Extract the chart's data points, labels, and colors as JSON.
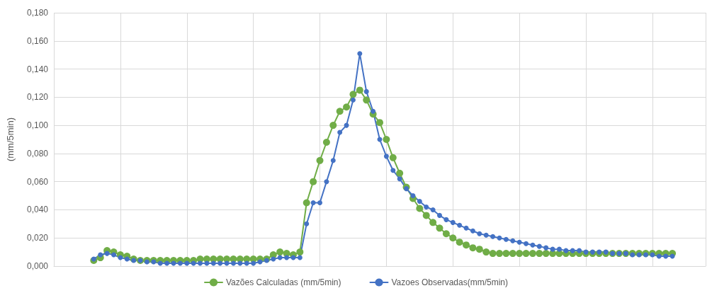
{
  "chart_data": {
    "type": "line",
    "ylabel": "(mm/5min)",
    "categories": [
      null,
      null,
      null,
      null,
      null,
      null,
      null,
      null,
      null,
      null,
      null,
      null,
      null,
      null,
      null,
      null,
      null,
      null,
      null,
      null,
      null,
      null,
      null,
      null,
      null,
      null,
      null,
      null,
      null,
      null,
      null,
      null,
      null,
      null,
      null,
      null,
      null,
      null,
      null,
      null,
      null,
      null,
      null,
      null,
      null,
      null,
      null,
      null,
      null,
      null,
      null,
      null,
      null,
      null,
      null,
      null,
      null,
      null,
      null,
      null,
      null,
      null,
      null,
      null,
      null,
      null,
      null,
      null,
      null,
      null,
      null,
      null,
      null,
      null,
      null,
      null,
      null,
      null,
      null,
      null,
      null,
      null,
      null,
      null,
      null,
      null,
      null,
      null,
      null,
      null,
      null,
      null,
      null,
      null,
      null,
      null,
      null,
      null,
      null
    ],
    "series": [
      {
        "name": "Vazões Calculadas (mm/5min)",
        "color": "#70ad47",
        "values": [
          null,
          null,
          null,
          null,
          null,
          null,
          0.004,
          0.006,
          0.011,
          0.01,
          0.008,
          0.007,
          0.005,
          0.004,
          0.004,
          0.004,
          0.004,
          0.004,
          0.004,
          0.004,
          0.004,
          0.004,
          0.005,
          0.005,
          0.005,
          0.005,
          0.005,
          0.005,
          0.005,
          0.005,
          0.005,
          0.005,
          0.005,
          0.008,
          0.01,
          0.009,
          0.008,
          0.01,
          0.045,
          0.06,
          0.075,
          0.088,
          0.1,
          0.11,
          0.113,
          0.122,
          0.125,
          0.118,
          0.108,
          0.102,
          0.09,
          0.077,
          0.066,
          0.056,
          0.048,
          0.041,
          0.036,
          0.031,
          0.027,
          0.023,
          0.02,
          0.017,
          0.015,
          0.013,
          0.012,
          0.01,
          0.009,
          0.009,
          0.009,
          0.009,
          0.009,
          0.009,
          0.009,
          0.009,
          0.009,
          0.009,
          0.009,
          0.009,
          0.009,
          0.009,
          0.009,
          0.009,
          0.009,
          0.009,
          0.009,
          0.009,
          0.009,
          0.009,
          0.009,
          0.009,
          0.009,
          0.009,
          0.009,
          0.009,
          null,
          null,
          null,
          null,
          null
        ]
      },
      {
        "name": "Vazoes Observadas(mm/5min)",
        "color": "#4472c4",
        "values": [
          null,
          null,
          null,
          null,
          null,
          null,
          0.005,
          0.008,
          0.009,
          0.008,
          0.006,
          0.005,
          0.004,
          0.004,
          0.003,
          0.003,
          0.002,
          0.002,
          0.002,
          0.002,
          0.002,
          0.002,
          0.002,
          0.002,
          0.002,
          0.002,
          0.002,
          0.002,
          0.002,
          0.002,
          0.002,
          0.003,
          0.004,
          0.005,
          0.006,
          0.006,
          0.006,
          0.006,
          0.03,
          0.045,
          0.045,
          0.06,
          0.075,
          0.095,
          0.1,
          0.118,
          0.151,
          0.124,
          0.11,
          0.09,
          0.078,
          0.068,
          0.062,
          0.055,
          0.05,
          0.046,
          0.042,
          0.04,
          0.036,
          0.033,
          0.031,
          0.029,
          0.027,
          0.025,
          0.023,
          0.022,
          0.021,
          0.02,
          0.019,
          0.018,
          0.017,
          0.016,
          0.015,
          0.014,
          0.013,
          0.012,
          0.012,
          0.011,
          0.011,
          0.011,
          0.01,
          0.01,
          0.01,
          0.01,
          0.009,
          0.009,
          0.009,
          0.008,
          0.008,
          0.008,
          0.008,
          0.007,
          0.007,
          0.007,
          null,
          null,
          null,
          null,
          null
        ]
      }
    ],
    "ylim": [
      0,
      0.18
    ],
    "yticks": [
      {
        "value": 0,
        "label": "0,000"
      },
      {
        "value": 0.02,
        "label": "0,020"
      },
      {
        "value": 0.04,
        "label": "0,040"
      },
      {
        "value": 0.06,
        "label": "0,060"
      },
      {
        "value": 0.08,
        "label": "0,080"
      },
      {
        "value": 0.1,
        "label": "0,100"
      },
      {
        "value": 0.12,
        "label": "0,120"
      },
      {
        "value": 0.14,
        "label": "0,140"
      },
      {
        "value": 0.16,
        "label": "0,160"
      },
      {
        "value": 0.18,
        "label": "0,180"
      }
    ],
    "grid": true,
    "legend": "bottom",
    "marker": "circle",
    "line_style": "solid"
  }
}
